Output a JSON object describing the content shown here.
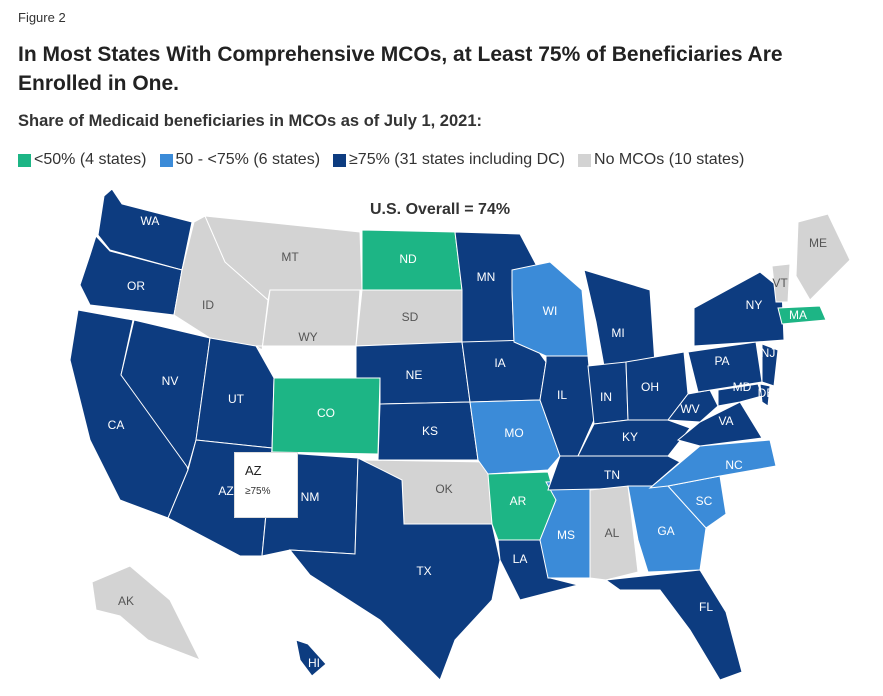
{
  "figure_label": "Figure 2",
  "title": "In Most States With Comprehensive MCOs, at Least 75% of Beneficiaries Are Enrolled in One.",
  "subtitle": "Share of Medicaid beneficiaries in MCOs as of July 1, 2021:",
  "legend": [
    {
      "label": "<50% (4 states)",
      "color": "#1db585"
    },
    {
      "label": "50 - <75% (6 states)",
      "color": "#3b8bd8"
    },
    {
      "label": "≥75% (31 states including DC)",
      "color": "#0d3c80"
    },
    {
      "label": "No MCOs (10 states)",
      "color": "#d3d3d3"
    }
  ],
  "overall": "U.S. Overall = 74%",
  "tooltip": {
    "state": "AZ",
    "value": "≥75%"
  },
  "states": [
    {
      "abbr": "WA",
      "category": "≥75%"
    },
    {
      "abbr": "OR",
      "category": "≥75%"
    },
    {
      "abbr": "CA",
      "category": "≥75%"
    },
    {
      "abbr": "NV",
      "category": "≥75%"
    },
    {
      "abbr": "ID",
      "category": "No MCOs"
    },
    {
      "abbr": "MT",
      "category": "No MCOs"
    },
    {
      "abbr": "WY",
      "category": "No MCOs"
    },
    {
      "abbr": "UT",
      "category": "≥75%"
    },
    {
      "abbr": "AZ",
      "category": "≥75%"
    },
    {
      "abbr": "CO",
      "category": "<50%"
    },
    {
      "abbr": "NM",
      "category": "≥75%"
    },
    {
      "abbr": "ND",
      "category": "<50%"
    },
    {
      "abbr": "SD",
      "category": "No MCOs"
    },
    {
      "abbr": "NE",
      "category": "≥75%"
    },
    {
      "abbr": "KS",
      "category": "≥75%"
    },
    {
      "abbr": "OK",
      "category": "No MCOs"
    },
    {
      "abbr": "TX",
      "category": "≥75%"
    },
    {
      "abbr": "MN",
      "category": "≥75%"
    },
    {
      "abbr": "IA",
      "category": "≥75%"
    },
    {
      "abbr": "MO",
      "category": "50 - <75%"
    },
    {
      "abbr": "AR",
      "category": "<50%"
    },
    {
      "abbr": "LA",
      "category": "≥75%"
    },
    {
      "abbr": "WI",
      "category": "50 - <75%"
    },
    {
      "abbr": "IL",
      "category": "≥75%"
    },
    {
      "abbr": "MS",
      "category": "50 - <75%"
    },
    {
      "abbr": "MI",
      "category": "≥75%"
    },
    {
      "abbr": "IN",
      "category": "≥75%"
    },
    {
      "abbr": "OH",
      "category": "≥75%"
    },
    {
      "abbr": "KY",
      "category": "≥75%"
    },
    {
      "abbr": "TN",
      "category": "≥75%"
    },
    {
      "abbr": "AL",
      "category": "No MCOs"
    },
    {
      "abbr": "GA",
      "category": "50 - <75%"
    },
    {
      "abbr": "FL",
      "category": "≥75%"
    },
    {
      "abbr": "SC",
      "category": "50 - <75%"
    },
    {
      "abbr": "NC",
      "category": "50 - <75%"
    },
    {
      "abbr": "VA",
      "category": "≥75%"
    },
    {
      "abbr": "WV",
      "category": "≥75%"
    },
    {
      "abbr": "PA",
      "category": "≥75%"
    },
    {
      "abbr": "NY",
      "category": "≥75%"
    },
    {
      "abbr": "NJ",
      "category": "≥75%"
    },
    {
      "abbr": "MD",
      "category": "≥75%"
    },
    {
      "abbr": "DE",
      "category": "≥75%"
    },
    {
      "abbr": "VT",
      "category": "No MCOs"
    },
    {
      "abbr": "ME",
      "category": "No MCOs"
    },
    {
      "abbr": "MA",
      "category": "<50%"
    },
    {
      "abbr": "AK",
      "category": "No MCOs"
    },
    {
      "abbr": "HI",
      "category": "≥75%"
    }
  ]
}
